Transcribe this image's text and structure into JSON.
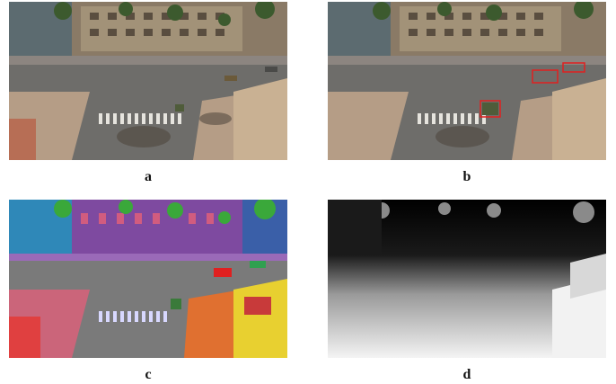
{
  "panels": [
    {
      "id": "a",
      "label": "a",
      "kind": "rgb-street-scene"
    },
    {
      "id": "b",
      "label": "b",
      "kind": "rgb-with-detection-boxes"
    },
    {
      "id": "c",
      "label": "c",
      "kind": "semantic-segmentation"
    },
    {
      "id": "d",
      "label": "d",
      "kind": "depth-map"
    }
  ],
  "colors": {
    "road": "#6e6d6a",
    "building": "#8a7a66",
    "sidewalk": "#b59d86",
    "detection_box": "#e02020",
    "seg_sky": "#2f88b8",
    "seg_building": "#7e4aa0",
    "seg_vegetation": "#3aa83a",
    "seg_sidewalk": "#e0607a",
    "seg_road": "#7a7a7a",
    "seg_pole": "#e8d030",
    "depth_far": "#000000",
    "depth_near": "#ffffff"
  }
}
